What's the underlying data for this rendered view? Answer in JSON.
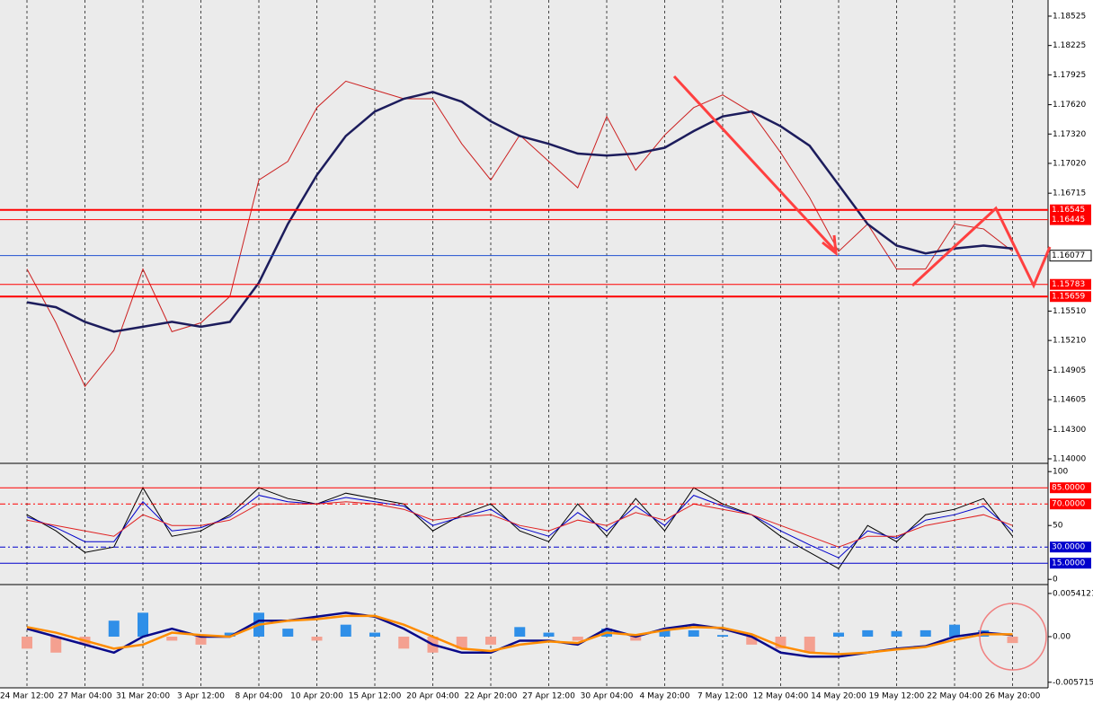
{
  "chart_data": [
    {
      "type": "line",
      "categories": [
        "24 Mar 12:00",
        null,
        "27 Mar 04:00",
        null,
        "31 Mar 20:00",
        null,
        "3 Apr 12:00",
        null,
        "8 Apr 04:00",
        null,
        "10 Apr 20:00",
        null,
        "15 Apr 12:00",
        null,
        "20 Apr 04:00",
        null,
        "22 Apr 20:00",
        null,
        "27 Apr 12:00",
        null,
        "30 Apr 04:00",
        null,
        "4 May 20:00",
        null,
        "7 May 12:00",
        null,
        "12 May 04:00",
        null,
        "14 May 20:00",
        null,
        "19 May 12:00",
        null,
        "22 May 04:00",
        null,
        "26 May 20:00",
        null
      ],
      "series": [
        {
          "color": "#cc2020",
          "values": [
            1.1594,
            1.1539,
            1.1474,
            1.1511,
            1.1594,
            1.153,
            1.1539,
            1.1566,
            1.1685,
            1.1704,
            1.1759,
            1.1786,
            1.1777,
            1.1768,
            1.1768,
            1.1722,
            1.1685,
            1.1731,
            1.1704,
            1.1677,
            1.175,
            1.1695,
            1.1731,
            1.1759,
            1.1772,
            1.1754,
            1.1713,
            1.1667,
            1.1612,
            1.164,
            1.1594,
            1.1594,
            1.164,
            1.1635,
            1.1612,
            null
          ]
        },
        {
          "color": "#1c1c5c",
          "values": [
            1.156,
            1.1555,
            1.154,
            1.153,
            1.1535,
            1.154,
            1.1535,
            1.154,
            1.158,
            1.164,
            1.169,
            1.173,
            1.1755,
            1.1768,
            1.1775,
            1.1765,
            1.1745,
            1.173,
            1.1722,
            1.1712,
            1.171,
            1.1712,
            1.1718,
            1.1735,
            1.175,
            1.1755,
            1.174,
            1.172,
            1.168,
            1.164,
            1.1618,
            1.161,
            1.1615,
            1.1618,
            1.1615,
            null
          ]
        }
      ],
      "ylim": [
        1.13963,
        1.1869
      ],
      "yticks": [
        1.18525,
        1.18225,
        1.17925,
        {
          "value": 1.1762,
          "label": "1.17620"
        },
        {
          "value": 1.1732,
          "label": "1.17320"
        },
        {
          "value": 1.1702,
          "label": "1.17020"
        },
        1.16715,
        {
          "value": 1.1551,
          "label": "1.15510"
        },
        {
          "value": 1.1521,
          "label": "1.15210"
        },
        1.14905,
        1.14605,
        {
          "value": 1.143,
          "label": "1.14300"
        },
        {
          "value": 1.14,
          "label": "1.14000"
        }
      ],
      "levels": [
        1.16545,
        1.16445,
        1.16077,
        1.15783,
        1.15659
      ],
      "level_colors": [
        "#ff0000",
        "#ff0000",
        "#2050d0",
        "#ff0000",
        "#ff0000"
      ]
    },
    {
      "type": "line",
      "series": [
        {
          "color": "#000000",
          "values": [
            60,
            45,
            25,
            30,
            85,
            40,
            45,
            60,
            85,
            75,
            70,
            80,
            75,
            70,
            45,
            60,
            70,
            45,
            35,
            70,
            40,
            75,
            45,
            85,
            70,
            60,
            40,
            25,
            10,
            50,
            35,
            60,
            65,
            75,
            40,
            null
          ]
        },
        {
          "color": "#0000cc",
          "values": [
            58,
            48,
            35,
            35,
            72,
            45,
            48,
            58,
            78,
            72,
            70,
            76,
            72,
            68,
            50,
            58,
            65,
            48,
            40,
            62,
            45,
            68,
            50,
            78,
            68,
            60,
            45,
            32,
            20,
            45,
            38,
            55,
            60,
            68,
            45,
            null
          ]
        },
        {
          "color": "#e02020",
          "values": [
            55,
            50,
            45,
            40,
            60,
            50,
            50,
            55,
            70,
            70,
            70,
            72,
            70,
            65,
            55,
            58,
            60,
            50,
            45,
            55,
            50,
            62,
            55,
            70,
            65,
            60,
            50,
            40,
            30,
            40,
            40,
            50,
            55,
            60,
            50,
            null
          ]
        }
      ],
      "ylim": [
        -4,
        106
      ],
      "yticks": [
        100,
        50,
        0
      ],
      "levels": [
        {
          "value": 85,
          "label": "85.0000"
        },
        {
          "value": 70,
          "label": "70.0000"
        },
        {
          "value": 30,
          "label": "30.0000"
        },
        {
          "value": 15,
          "label": "15.0000"
        }
      ],
      "level_colors": [
        "#ff0000",
        "#ff0000",
        "#0000cc",
        "#0000cc"
      ]
    },
    {
      "type": "macd",
      "values": [
        -0.0015,
        -0.002,
        -0.001,
        0.002,
        0.003,
        -0.0005,
        -0.001,
        0.0005,
        0.003,
        0.001,
        -0.0005,
        0.0015,
        0.0005,
        -0.0015,
        -0.002,
        -0.0015,
        -0.001,
        0.0012,
        0.0005,
        -0.0005,
        0.001,
        -0.0005,
        0.001,
        0.0008,
        0.0002,
        -0.001,
        -0.0015,
        -0.002,
        0.0005,
        0.0008,
        0.0007,
        0.0008,
        0.0015,
        0.0008,
        -0.0008,
        null
      ],
      "positive_color": "#2f8fe8",
      "negative_color": "#f4a090",
      "series": [
        {
          "color": "#0a0a8a",
          "values": [
            0.001,
            0,
            -0.001,
            -0.002,
            0,
            0.001,
            0,
            0,
            0.002,
            0.002,
            0.0025,
            0.003,
            0.0025,
            0.001,
            -0.001,
            -0.002,
            -0.002,
            -0.0005,
            -0.0005,
            -0.001,
            0.001,
            0,
            0.001,
            0.0015,
            0.001,
            0,
            -0.002,
            -0.0025,
            -0.0025,
            -0.002,
            -0.0015,
            -0.0012,
            0,
            0.0005,
            0.0002,
            null
          ]
        },
        {
          "color": "#ff8c00",
          "values": [
            0.0012,
            0.0005,
            -0.0005,
            -0.0015,
            -0.001,
            0.0005,
            0.0002,
            0,
            0.0015,
            0.002,
            0.0022,
            0.0026,
            0.0026,
            0.0015,
            0,
            -0.0015,
            -0.0018,
            -0.001,
            -0.0006,
            -0.0008,
            0.0005,
            0.0002,
            0.0008,
            0.0012,
            0.0011,
            0.0003,
            -0.0012,
            -0.002,
            -0.0022,
            -0.002,
            -0.0016,
            -0.0013,
            -0.0004,
            0.0003,
            0.0003,
            null
          ]
        }
      ],
      "ylim": [
        -0.0063,
        0.0063
      ],
      "yticks": [
        0.0054121,
        {
          "value": 0,
          "label": "0.00"
        },
        -0.0057154
      ]
    }
  ]
}
